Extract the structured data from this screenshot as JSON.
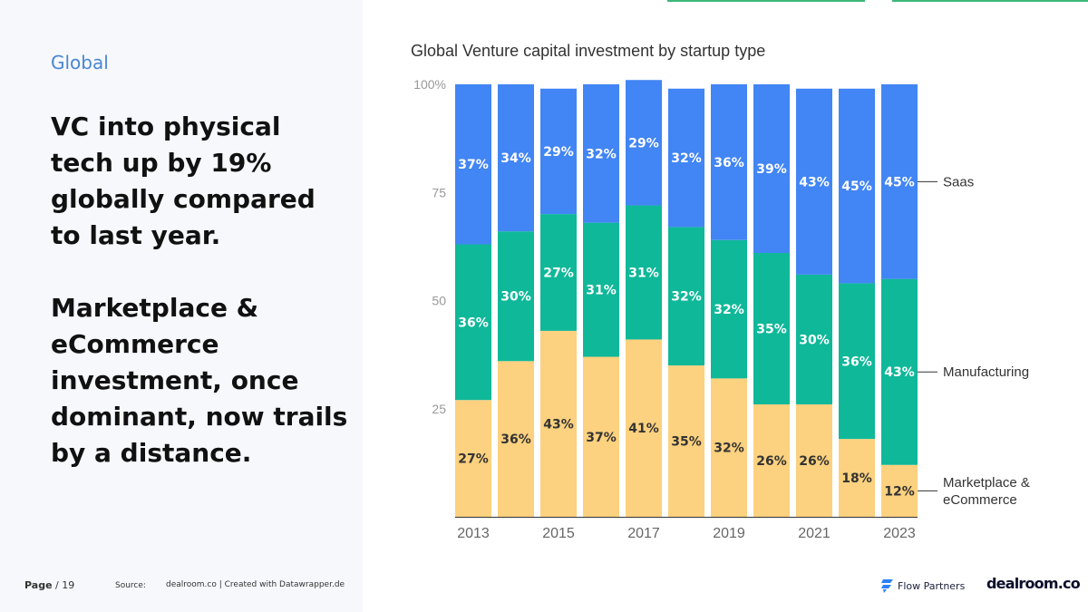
{
  "slide": {
    "section": "Global",
    "headline_1": "VC into physical tech up by 19% globally compared to last year.",
    "headline_2": "Marketplace & eCommerce investment, once dominant, now trails by a distance."
  },
  "footer": {
    "page_label": "Page",
    "page_suffix": "/ 19",
    "source_label": "Source:",
    "source_text": "dealroom.co | Created with Datawrapper.de",
    "brand_flow": "Flow Partners",
    "brand_dealroom": "dealroom.co"
  },
  "colors": {
    "saas": "#4285f4",
    "manufacturing": "#0fb899",
    "marketplace": "#fcd17f",
    "accent": "#4a86d4"
  },
  "chart_data": {
    "type": "bar",
    "stacked": true,
    "title": "Global Venture capital investment by startup type",
    "xlabel": "",
    "ylabel": "",
    "ylim": [
      0,
      100
    ],
    "y_ticks": [
      "25",
      "50",
      "75",
      "100%"
    ],
    "y_tick_values": [
      25,
      50,
      75,
      100
    ],
    "categories": [
      "2013",
      "2014",
      "2015",
      "2016",
      "2017",
      "2018",
      "2019",
      "2020",
      "2021",
      "2022",
      "2023"
    ],
    "x_tick_labels": [
      "2013",
      "2015",
      "2017",
      "2019",
      "2021",
      "2023"
    ],
    "series": [
      {
        "name": "Marketplace & eCommerce",
        "name_lines": [
          "Marketplace &",
          "eCommerce"
        ],
        "values": [
          27,
          36,
          43,
          37,
          41,
          35,
          32,
          26,
          26,
          18,
          12
        ],
        "labels": [
          "27%",
          "36%",
          "43%",
          "37%",
          "41%",
          "35%",
          "32%",
          "26%",
          "26%",
          "18%",
          "12%"
        ]
      },
      {
        "name": "Manufacturing",
        "name_lines": [
          "Manufacturing"
        ],
        "values": [
          36,
          30,
          27,
          31,
          31,
          32,
          32,
          35,
          30,
          36,
          43
        ],
        "labels": [
          "36%",
          "30%",
          "27%",
          "31%",
          "31%",
          "32%",
          "32%",
          "35%",
          "30%",
          "36%",
          "43%"
        ]
      },
      {
        "name": "Saas",
        "name_lines": [
          "Saas"
        ],
        "values": [
          37,
          34,
          29,
          32,
          29,
          32,
          36,
          39,
          43,
          45,
          45
        ],
        "labels": [
          "37%",
          "34%",
          "29%",
          "32%",
          "29%",
          "32%",
          "36%",
          "39%",
          "43%",
          "45%",
          "45%"
        ]
      }
    ],
    "grid": false,
    "legend": "right-inline"
  }
}
